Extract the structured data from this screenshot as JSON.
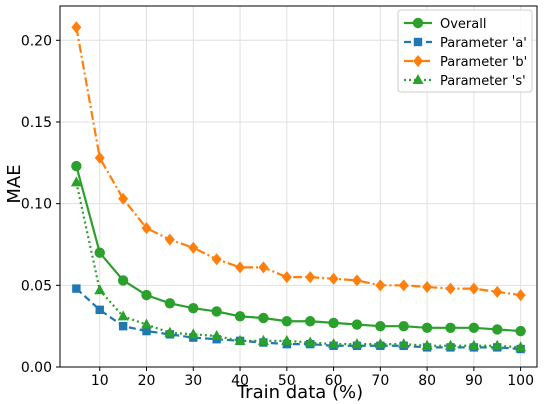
{
  "chart_data": {
    "type": "line",
    "title": "",
    "xlabel": "Train data (%)",
    "ylabel": "MAE",
    "xlim": [
      1.5,
      103.5
    ],
    "ylim": [
      0,
      0.221
    ],
    "xticks": [
      "10",
      "20",
      "30",
      "40",
      "50",
      "60",
      "70",
      "80",
      "90",
      "100"
    ],
    "yticks": [
      "0.00",
      "0.05",
      "0.10",
      "0.15",
      "0.20"
    ],
    "grid": true,
    "legend_position": "top-right",
    "x": [
      5,
      10,
      15,
      20,
      25,
      30,
      35,
      40,
      45,
      50,
      55,
      60,
      65,
      70,
      75,
      80,
      85,
      90,
      95,
      100
    ],
    "series": [
      {
        "name": "Overall",
        "color": "#2ca02c",
        "line_style": "solid",
        "marker": "circle",
        "values": [
          0.123,
          0.07,
          0.053,
          0.044,
          0.039,
          0.036,
          0.034,
          0.031,
          0.03,
          0.028,
          0.028,
          0.027,
          0.026,
          0.025,
          0.025,
          0.024,
          0.024,
          0.024,
          0.023,
          0.022
        ]
      },
      {
        "name": "Parameter 'a'",
        "color": "#1f77b4",
        "line_style": "dashed",
        "marker": "square",
        "values": [
          0.048,
          0.035,
          0.025,
          0.022,
          0.02,
          0.018,
          0.017,
          0.016,
          0.015,
          0.014,
          0.014,
          0.013,
          0.013,
          0.013,
          0.013,
          0.012,
          0.012,
          0.012,
          0.012,
          0.011
        ]
      },
      {
        "name": "Parameter 'b'",
        "color": "#ff7f0e",
        "line_style": "dashdot",
        "marker": "diamond",
        "values": [
          0.208,
          0.128,
          0.103,
          0.085,
          0.078,
          0.073,
          0.066,
          0.061,
          0.061,
          0.055,
          0.055,
          0.054,
          0.053,
          0.05,
          0.05,
          0.049,
          0.048,
          0.048,
          0.046,
          0.044
        ]
      },
      {
        "name": "Parameter 's'",
        "color": "#2ca02c",
        "line_style": "dotted",
        "marker": "triangle",
        "values": [
          0.113,
          0.047,
          0.031,
          0.026,
          0.021,
          0.02,
          0.019,
          0.016,
          0.016,
          0.016,
          0.015,
          0.014,
          0.014,
          0.014,
          0.014,
          0.013,
          0.013,
          0.013,
          0.013,
          0.012
        ]
      }
    ]
  }
}
